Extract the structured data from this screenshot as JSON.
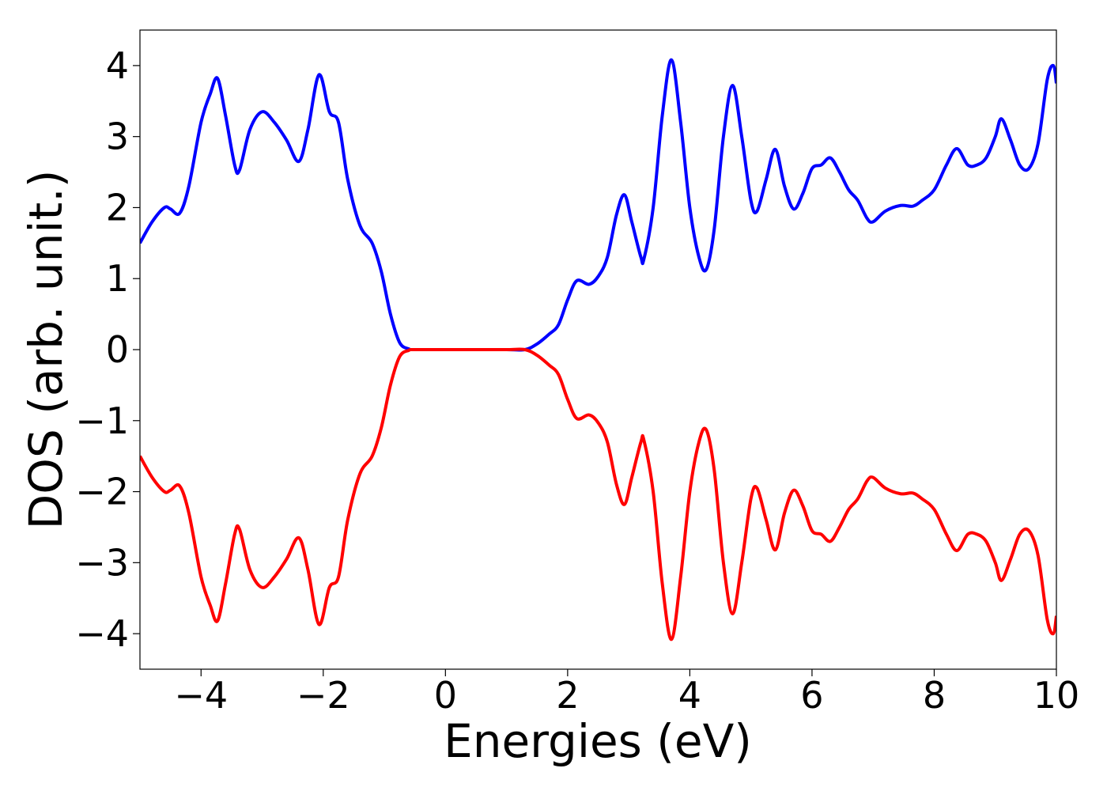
{
  "chart_data": {
    "type": "line",
    "xlabel": "Energies (eV)",
    "ylabel": "DOS (arb. unit.)",
    "x": [
      -5,
      -4.8,
      -4.6,
      -4.5,
      -4.35,
      -4.2,
      -4.0,
      -3.85,
      -3.73,
      -3.6,
      -3.45,
      -3.37,
      -3.2,
      -3.0,
      -2.8,
      -2.6,
      -2.4,
      -2.25,
      -2.07,
      -1.9,
      -1.75,
      -1.6,
      -1.4,
      -1.2,
      -1.05,
      -0.9,
      -0.75,
      -0.6,
      -0.5,
      0,
      0.5,
      1.0,
      1.3,
      1.5,
      1.7,
      1.85,
      2.0,
      2.15,
      2.35,
      2.5,
      2.65,
      2.8,
      2.93,
      3.05,
      3.2,
      3.25,
      3.4,
      3.55,
      3.7,
      3.85,
      4.0,
      4.15,
      4.27,
      4.4,
      4.55,
      4.7,
      4.85,
      5.0,
      5.1,
      5.25,
      5.4,
      5.55,
      5.7,
      5.85,
      6.0,
      6.15,
      6.3,
      6.45,
      6.6,
      6.75,
      6.9,
      7.0,
      7.2,
      7.45,
      7.65,
      7.8,
      8.0,
      8.2,
      8.37,
      8.55,
      8.7,
      8.85,
      9.0,
      9.1,
      9.25,
      9.4,
      9.55,
      9.7,
      9.85,
      9.95,
      10.0
    ],
    "series": [
      {
        "color": "#0000ff",
        "values": [
          1.5,
          1.8,
          2.0,
          1.98,
          1.92,
          2.3,
          3.2,
          3.6,
          3.82,
          3.3,
          2.6,
          2.53,
          3.1,
          3.35,
          3.2,
          2.95,
          2.65,
          3.1,
          3.87,
          3.35,
          3.2,
          2.4,
          1.75,
          1.5,
          1.1,
          0.5,
          0.1,
          0.01,
          0,
          0,
          0,
          0,
          0,
          0.08,
          0.22,
          0.35,
          0.7,
          0.97,
          0.92,
          1.03,
          1.3,
          1.9,
          2.18,
          1.8,
          1.3,
          1.28,
          2.0,
          3.3,
          4.08,
          3.2,
          2.0,
          1.3,
          1.13,
          1.7,
          3.0,
          3.72,
          3.0,
          2.1,
          1.95,
          2.4,
          2.82,
          2.3,
          1.98,
          2.2,
          2.55,
          2.6,
          2.7,
          2.5,
          2.25,
          2.1,
          1.85,
          1.8,
          1.95,
          2.03,
          2.02,
          2.1,
          2.25,
          2.6,
          2.83,
          2.6,
          2.6,
          2.7,
          3.0,
          3.25,
          2.95,
          2.6,
          2.55,
          2.9,
          3.8,
          4.0,
          3.75
        ]
      },
      {
        "color": "#ff0000",
        "values": [
          -1.5,
          -1.8,
          -2.0,
          -1.98,
          -1.92,
          -2.3,
          -3.2,
          -3.6,
          -3.82,
          -3.3,
          -2.6,
          -2.53,
          -3.1,
          -3.35,
          -3.2,
          -2.95,
          -2.65,
          -3.1,
          -3.87,
          -3.35,
          -3.2,
          -2.4,
          -1.75,
          -1.5,
          -1.1,
          -0.5,
          -0.1,
          -0.01,
          0,
          0,
          0,
          0,
          0,
          -0.08,
          -0.22,
          -0.35,
          -0.7,
          -0.97,
          -0.92,
          -1.03,
          -1.3,
          -1.9,
          -2.18,
          -1.8,
          -1.3,
          -1.28,
          -2.0,
          -3.3,
          -4.08,
          -3.2,
          -2.0,
          -1.3,
          -1.13,
          -1.7,
          -3.0,
          -3.72,
          -3.0,
          -2.1,
          -1.95,
          -2.4,
          -2.82,
          -2.3,
          -1.98,
          -2.2,
          -2.55,
          -2.6,
          -2.7,
          -2.5,
          -2.25,
          -2.1,
          -1.85,
          -1.8,
          -1.95,
          -2.03,
          -2.02,
          -2.1,
          -2.25,
          -2.6,
          -2.83,
          -2.6,
          -2.6,
          -2.7,
          -3.0,
          -3.25,
          -2.95,
          -2.6,
          -2.55,
          -2.9,
          -3.8,
          -4.0,
          -3.75
        ]
      }
    ],
    "xlim": [
      -5,
      10
    ],
    "ylim": [
      -4.5,
      4.5
    ],
    "xticks": [
      {
        "value": -4,
        "label": "−4"
      },
      {
        "value": -2,
        "label": "−2"
      },
      0,
      2,
      4,
      6,
      8,
      10
    ],
    "yticks": [
      {
        "value": -4,
        "label": "−4"
      },
      {
        "value": -3,
        "label": "−3"
      },
      {
        "value": -2,
        "label": "−2"
      },
      {
        "value": -1,
        "label": "−1"
      },
      0,
      1,
      2,
      3,
      4
    ],
    "grid": false
  }
}
